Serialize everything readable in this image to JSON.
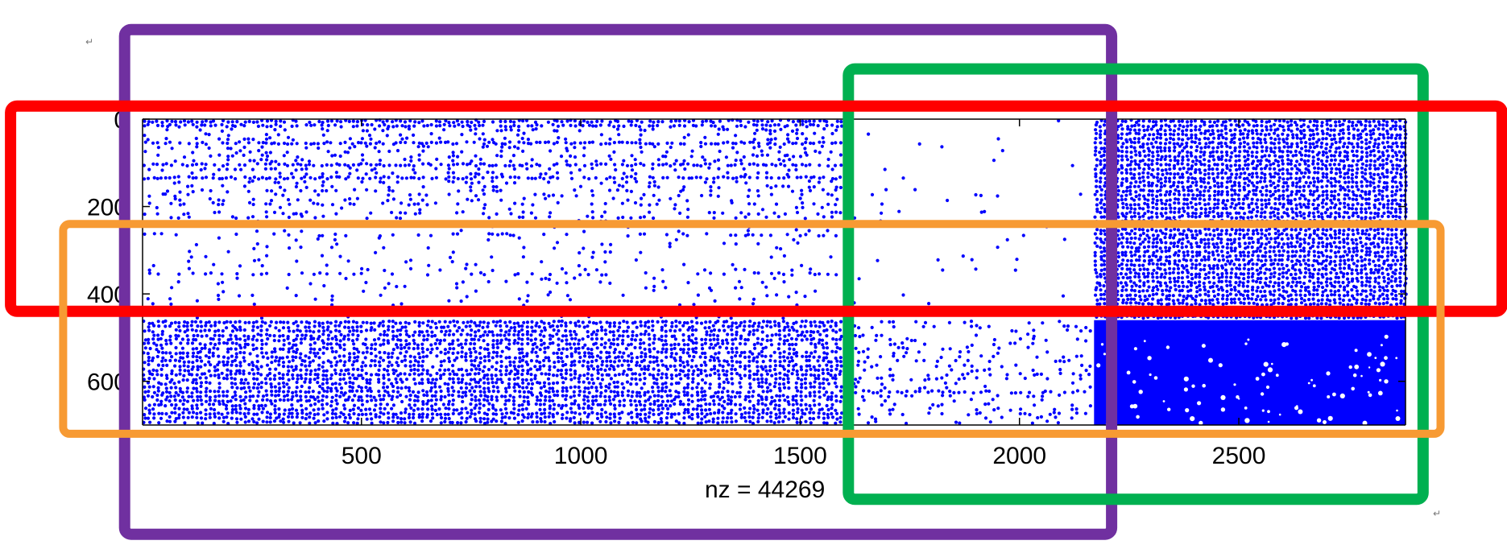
{
  "chart_data": {
    "type": "scatter",
    "subtype": "sparsity-pattern",
    "x_ticks": [
      500,
      1000,
      1500,
      2000,
      2500
    ],
    "x_tick_labels": [
      "500",
      "1000",
      "1500",
      "2000",
      "2500"
    ],
    "y_ticks": [
      0,
      200,
      400,
      600
    ],
    "y_tick_labels": [
      "0",
      "200",
      "400",
      "600"
    ],
    "xlim": [
      1,
      2880
    ],
    "ylim": [
      0,
      700
    ],
    "y_reversed": true,
    "xlabel": "nz = 44269",
    "nz": 44269,
    "marker_color": "#0000FF",
    "density_blocks": [
      {
        "x_range": [
          1,
          1600
        ],
        "y_range": [
          0,
          200
        ],
        "density": 0.035
      },
      {
        "x_range": [
          1,
          1600
        ],
        "y_range": [
          200,
          460
        ],
        "density": 0.012
      },
      {
        "x_range": [
          1,
          1600
        ],
        "y_range": [
          460,
          700
        ],
        "density": 0.12
      },
      {
        "x_range": [
          1600,
          2170
        ],
        "y_range": [
          0,
          460
        ],
        "density": 0.0015
      },
      {
        "x_range": [
          1600,
          2170
        ],
        "y_range": [
          460,
          700
        ],
        "density": 0.03
      },
      {
        "x_range": [
          2170,
          2880
        ],
        "y_range": [
          0,
          460
        ],
        "density": 0.35
      },
      {
        "x_range": [
          2170,
          2880
        ],
        "y_range": [
          460,
          700
        ],
        "density": 0.9
      }
    ],
    "annotations": [
      {
        "shape": "rectangle",
        "color": "#7030A0",
        "x_range": [
          -40,
          2210
        ],
        "y_range": [
          -205,
          950
        ]
      },
      {
        "shape": "rectangle",
        "color": "#00B050",
        "x_range": [
          1610,
          2920
        ],
        "y_range": [
          -115,
          870
        ]
      },
      {
        "shape": "rectangle",
        "color": "#FF0000",
        "x_range": [
          -300,
          3100
        ],
        "y_range": [
          -30,
          440
        ]
      },
      {
        "shape": "rectangle",
        "color": "#F79A33",
        "x_range": [
          -180,
          2960
        ],
        "y_range": [
          240,
          720
        ]
      }
    ],
    "return_marks": [
      "↵",
      "↵"
    ]
  }
}
